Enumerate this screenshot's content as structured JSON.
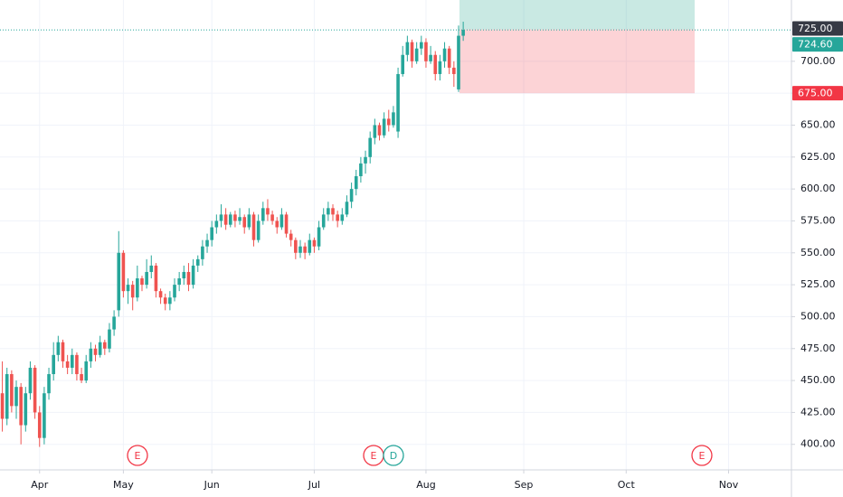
{
  "chart_data": {
    "type": "candlestick",
    "up_color": "#26a69a",
    "down_color": "#ef5350",
    "grid": true,
    "xlim": [
      -0.5,
      169.5
    ],
    "xticks": [
      {
        "value": 8,
        "label": "Apr"
      },
      {
        "value": 26,
        "label": "May"
      },
      {
        "value": 45,
        "label": "Jun"
      },
      {
        "value": 67,
        "label": "Jul"
      },
      {
        "value": 91,
        "label": "Aug"
      },
      {
        "value": 112,
        "label": "Sep"
      },
      {
        "value": 134,
        "label": "Oct"
      },
      {
        "value": 156,
        "label": "Nov"
      }
    ],
    "ylim": [
      380,
      748
    ],
    "yticks": [
      {
        "value": 400,
        "label": "400.00"
      },
      {
        "value": 425,
        "label": "425.00"
      },
      {
        "value": 450,
        "label": "450.00"
      },
      {
        "value": 475,
        "label": "475.00"
      },
      {
        "value": 500,
        "label": "500.00"
      },
      {
        "value": 525,
        "label": "525.00"
      },
      {
        "value": 550,
        "label": "550.00"
      },
      {
        "value": 575,
        "label": "575.00"
      },
      {
        "value": 600,
        "label": "600.00"
      },
      {
        "value": 625,
        "label": "625.00"
      },
      {
        "value": 650,
        "label": "650.00"
      },
      {
        "value": 675,
        "label": "675.00"
      },
      {
        "value": 700,
        "label": "700.00"
      }
    ],
    "open": [
      440,
      420,
      455,
      430,
      445,
      415,
      440,
      460,
      425,
      405,
      440,
      455,
      470,
      480,
      465,
      460,
      470,
      455,
      450,
      465,
      475,
      470,
      480,
      475,
      490,
      505,
      550,
      520,
      525,
      515,
      530,
      525,
      535,
      540,
      520,
      515,
      510,
      515,
      525,
      530,
      535,
      525,
      540,
      545,
      555,
      560,
      570,
      575,
      580,
      572,
      580,
      575,
      578,
      570,
      580,
      560,
      575,
      585,
      580,
      575,
      570,
      580,
      565,
      560,
      550,
      555,
      550,
      560,
      555,
      570,
      580,
      585,
      580,
      575,
      580,
      590,
      600,
      610,
      620,
      625,
      640,
      650,
      642,
      655,
      650,
      645,
      690,
      705,
      715,
      700,
      710,
      715,
      700,
      705,
      690,
      700,
      710,
      695,
      678,
      720
    ],
    "high": [
      465,
      460,
      458,
      450,
      448,
      445,
      465,
      462,
      430,
      445,
      460,
      480,
      485,
      482,
      470,
      475,
      472,
      460,
      470,
      480,
      478,
      485,
      482,
      495,
      505,
      567,
      552,
      530,
      528,
      540,
      532,
      545,
      548,
      542,
      522,
      518,
      520,
      530,
      535,
      540,
      542,
      545,
      548,
      560,
      565,
      575,
      580,
      588,
      585,
      582,
      583,
      585,
      580,
      585,
      582,
      580,
      590,
      592,
      583,
      578,
      585,
      582,
      568,
      562,
      560,
      558,
      565,
      562,
      575,
      585,
      590,
      588,
      583,
      585,
      595,
      605,
      615,
      625,
      630,
      645,
      655,
      652,
      660,
      662,
      665,
      695,
      712,
      720,
      717,
      715,
      720,
      718,
      712,
      708,
      705,
      715,
      712,
      700,
      728,
      731
    ],
    "low": [
      410,
      415,
      425,
      420,
      400,
      410,
      435,
      420,
      398,
      400,
      435,
      450,
      465,
      460,
      455,
      455,
      450,
      448,
      448,
      460,
      465,
      468,
      470,
      472,
      485,
      500,
      515,
      510,
      505,
      512,
      520,
      522,
      530,
      515,
      510,
      505,
      505,
      512,
      520,
      525,
      520,
      522,
      535,
      540,
      550,
      555,
      565,
      570,
      568,
      570,
      570,
      572,
      565,
      568,
      555,
      558,
      572,
      575,
      572,
      565,
      568,
      562,
      555,
      545,
      546,
      545,
      548,
      550,
      552,
      568,
      575,
      575,
      570,
      572,
      578,
      585,
      595,
      605,
      612,
      620,
      635,
      638,
      640,
      645,
      648,
      640,
      688,
      700,
      695,
      698,
      705,
      695,
      698,
      685,
      685,
      695,
      690,
      680,
      676,
      716
    ],
    "close": [
      420,
      455,
      430,
      445,
      415,
      440,
      460,
      425,
      405,
      440,
      455,
      470,
      480,
      465,
      460,
      470,
      455,
      450,
      465,
      475,
      470,
      480,
      475,
      490,
      500,
      550,
      520,
      525,
      515,
      530,
      525,
      535,
      540,
      520,
      515,
      510,
      515,
      525,
      530,
      535,
      525,
      540,
      545,
      555,
      560,
      570,
      575,
      580,
      572,
      580,
      575,
      578,
      570,
      580,
      560,
      575,
      585,
      580,
      575,
      570,
      580,
      565,
      560,
      550,
      555,
      550,
      560,
      555,
      570,
      580,
      585,
      580,
      575,
      580,
      590,
      600,
      610,
      620,
      625,
      640,
      650,
      642,
      655,
      650,
      660,
      690,
      705,
      715,
      700,
      710,
      715,
      700,
      705,
      690,
      700,
      710,
      695,
      690,
      720,
      724.6
    ],
    "last_price": {
      "value": 724.6,
      "label": "724.60"
    },
    "target": {
      "value": 725,
      "label": "725.00"
    },
    "stop": {
      "value": 675,
      "label": "675.00"
    },
    "events": [
      "E",
      "E",
      "D",
      "E"
    ]
  }
}
